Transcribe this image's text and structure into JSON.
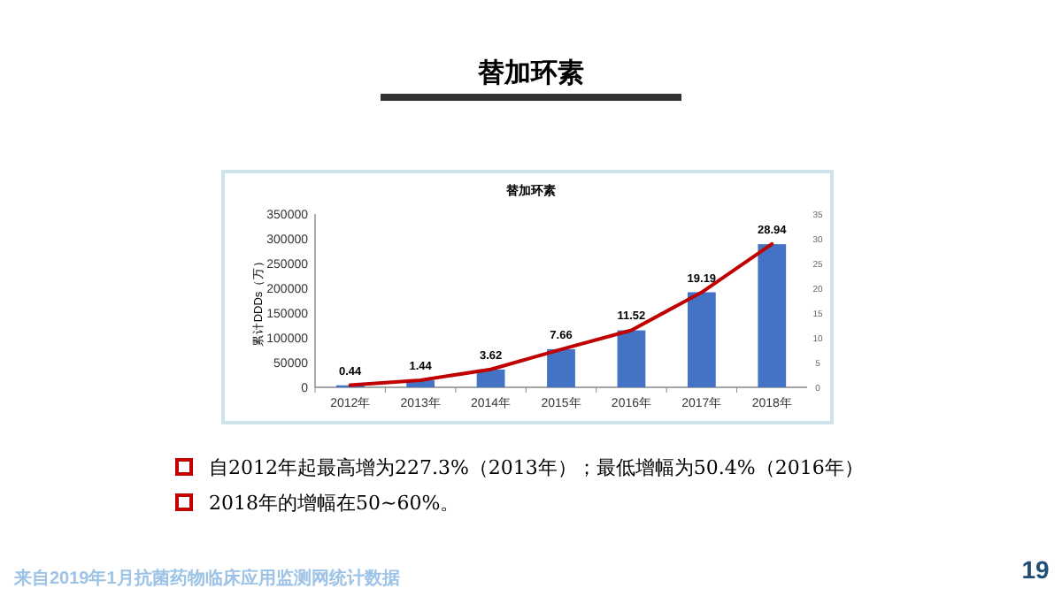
{
  "chart_data": {
    "type": "bar",
    "title": "替加环素",
    "subtitle": "替加环素",
    "ylabel": "累计DDDs（万）",
    "categories": [
      "2012年",
      "2013年",
      "2014年",
      "2015年",
      "2016年",
      "2017年",
      "2018年"
    ],
    "series": [
      {
        "color": "#4472c4",
        "values": [
          4000,
          14000,
          36000,
          77000,
          115000,
          192000,
          289000
        ]
      },
      {
        "type": "line",
        "axis": "y2",
        "color": "#c00000",
        "values": [
          0.44,
          1.44,
          3.62,
          7.66,
          11.52,
          19.19,
          28.94
        ],
        "data_labels": true
      }
    ],
    "ylim": [
      0,
      350000
    ],
    "yticks": [
      0,
      50000,
      100000,
      150000,
      200000,
      250000,
      300000,
      350000
    ],
    "y2lim": [
      0,
      35
    ],
    "y2ticks": [
      0,
      5,
      10,
      15,
      20,
      25,
      30,
      35
    ],
    "grid": false,
    "annotations": [
      "自2012年起最高增为227.3%（2013年）；最低增幅为50.4%（2016年）",
      "2018年的增幅在50~60%。",
      "来自2019年1月抗菌药物临床应用监测网统计数据",
      "19"
    ]
  }
}
